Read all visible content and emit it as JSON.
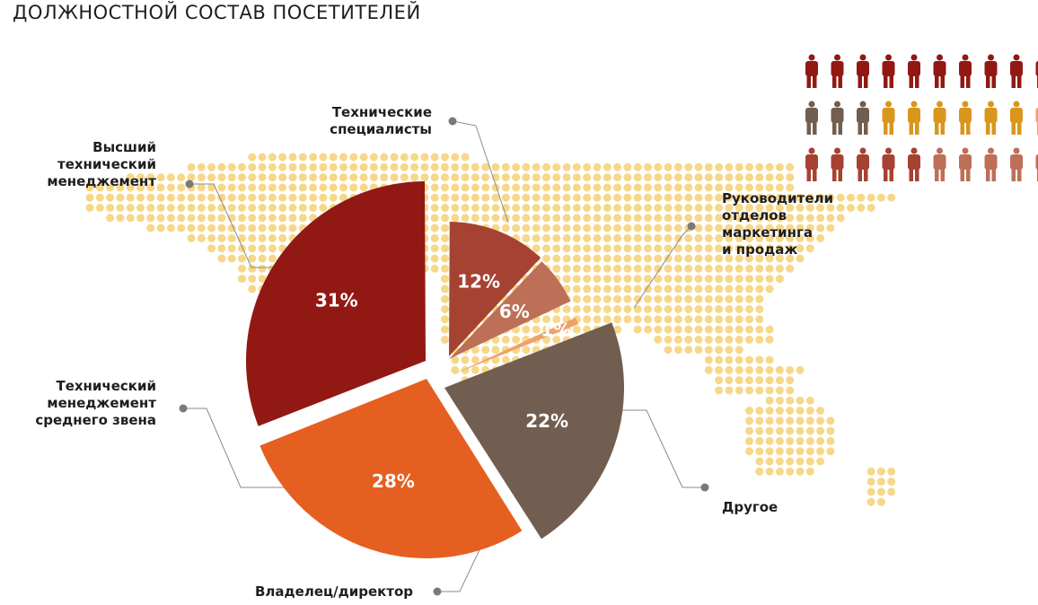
{
  "title": "ДОЛЖНОСТНОЙ СОСТАВ ПОСЕТИТЕЛЕЙ",
  "chart_data": {
    "type": "pie",
    "slices": [
      {
        "label": "Технические\nспециалисты",
        "value": 12,
        "value_label": "12%",
        "color": "#a64232"
      },
      {
        "label": "Руководители\nотделов\nмаркетинга\nи продаж",
        "value": 6,
        "value_label": "6%",
        "color": "#bd6f58"
      },
      {
        "label": "Другое",
        "value": 1,
        "value_label": "1%",
        "color": "#f0a06d"
      },
      {
        "label": "Владелец/директор",
        "value": 22,
        "value_label": "22%",
        "color": "#725e50"
      },
      {
        "label": "Технический\nменеджемент\nсреднего звена",
        "value": 28,
        "value_label": "28%",
        "color": "#e55f20"
      },
      {
        "label": "Высший\nтехнический\nменеджемент",
        "value": 31,
        "value_label": "31%",
        "color": "#921813"
      }
    ]
  },
  "people_icons": {
    "icon": "person-icon",
    "rows": [
      [
        "#921813",
        "#921813",
        "#921813",
        "#921813",
        "#921813",
        "#921813",
        "#921813",
        "#921813",
        "#921813",
        "#921813"
      ],
      [
        "#725e50",
        "#725e50",
        "#725e50",
        "#d9961c",
        "#d9961c",
        "#d9961c",
        "#d9961c",
        "#d9961c",
        "#d9961c",
        "#f0a06d"
      ],
      [
        "#a64232",
        "#a64232",
        "#a64232",
        "#a64232",
        "#a64232",
        "#bd6f58",
        "#bd6f58",
        "#bd6f58",
        "#bd6f58",
        "#bd6f58"
      ]
    ]
  },
  "map_dot_color": "#f6d88a",
  "connector_color": "#8a8a8a"
}
